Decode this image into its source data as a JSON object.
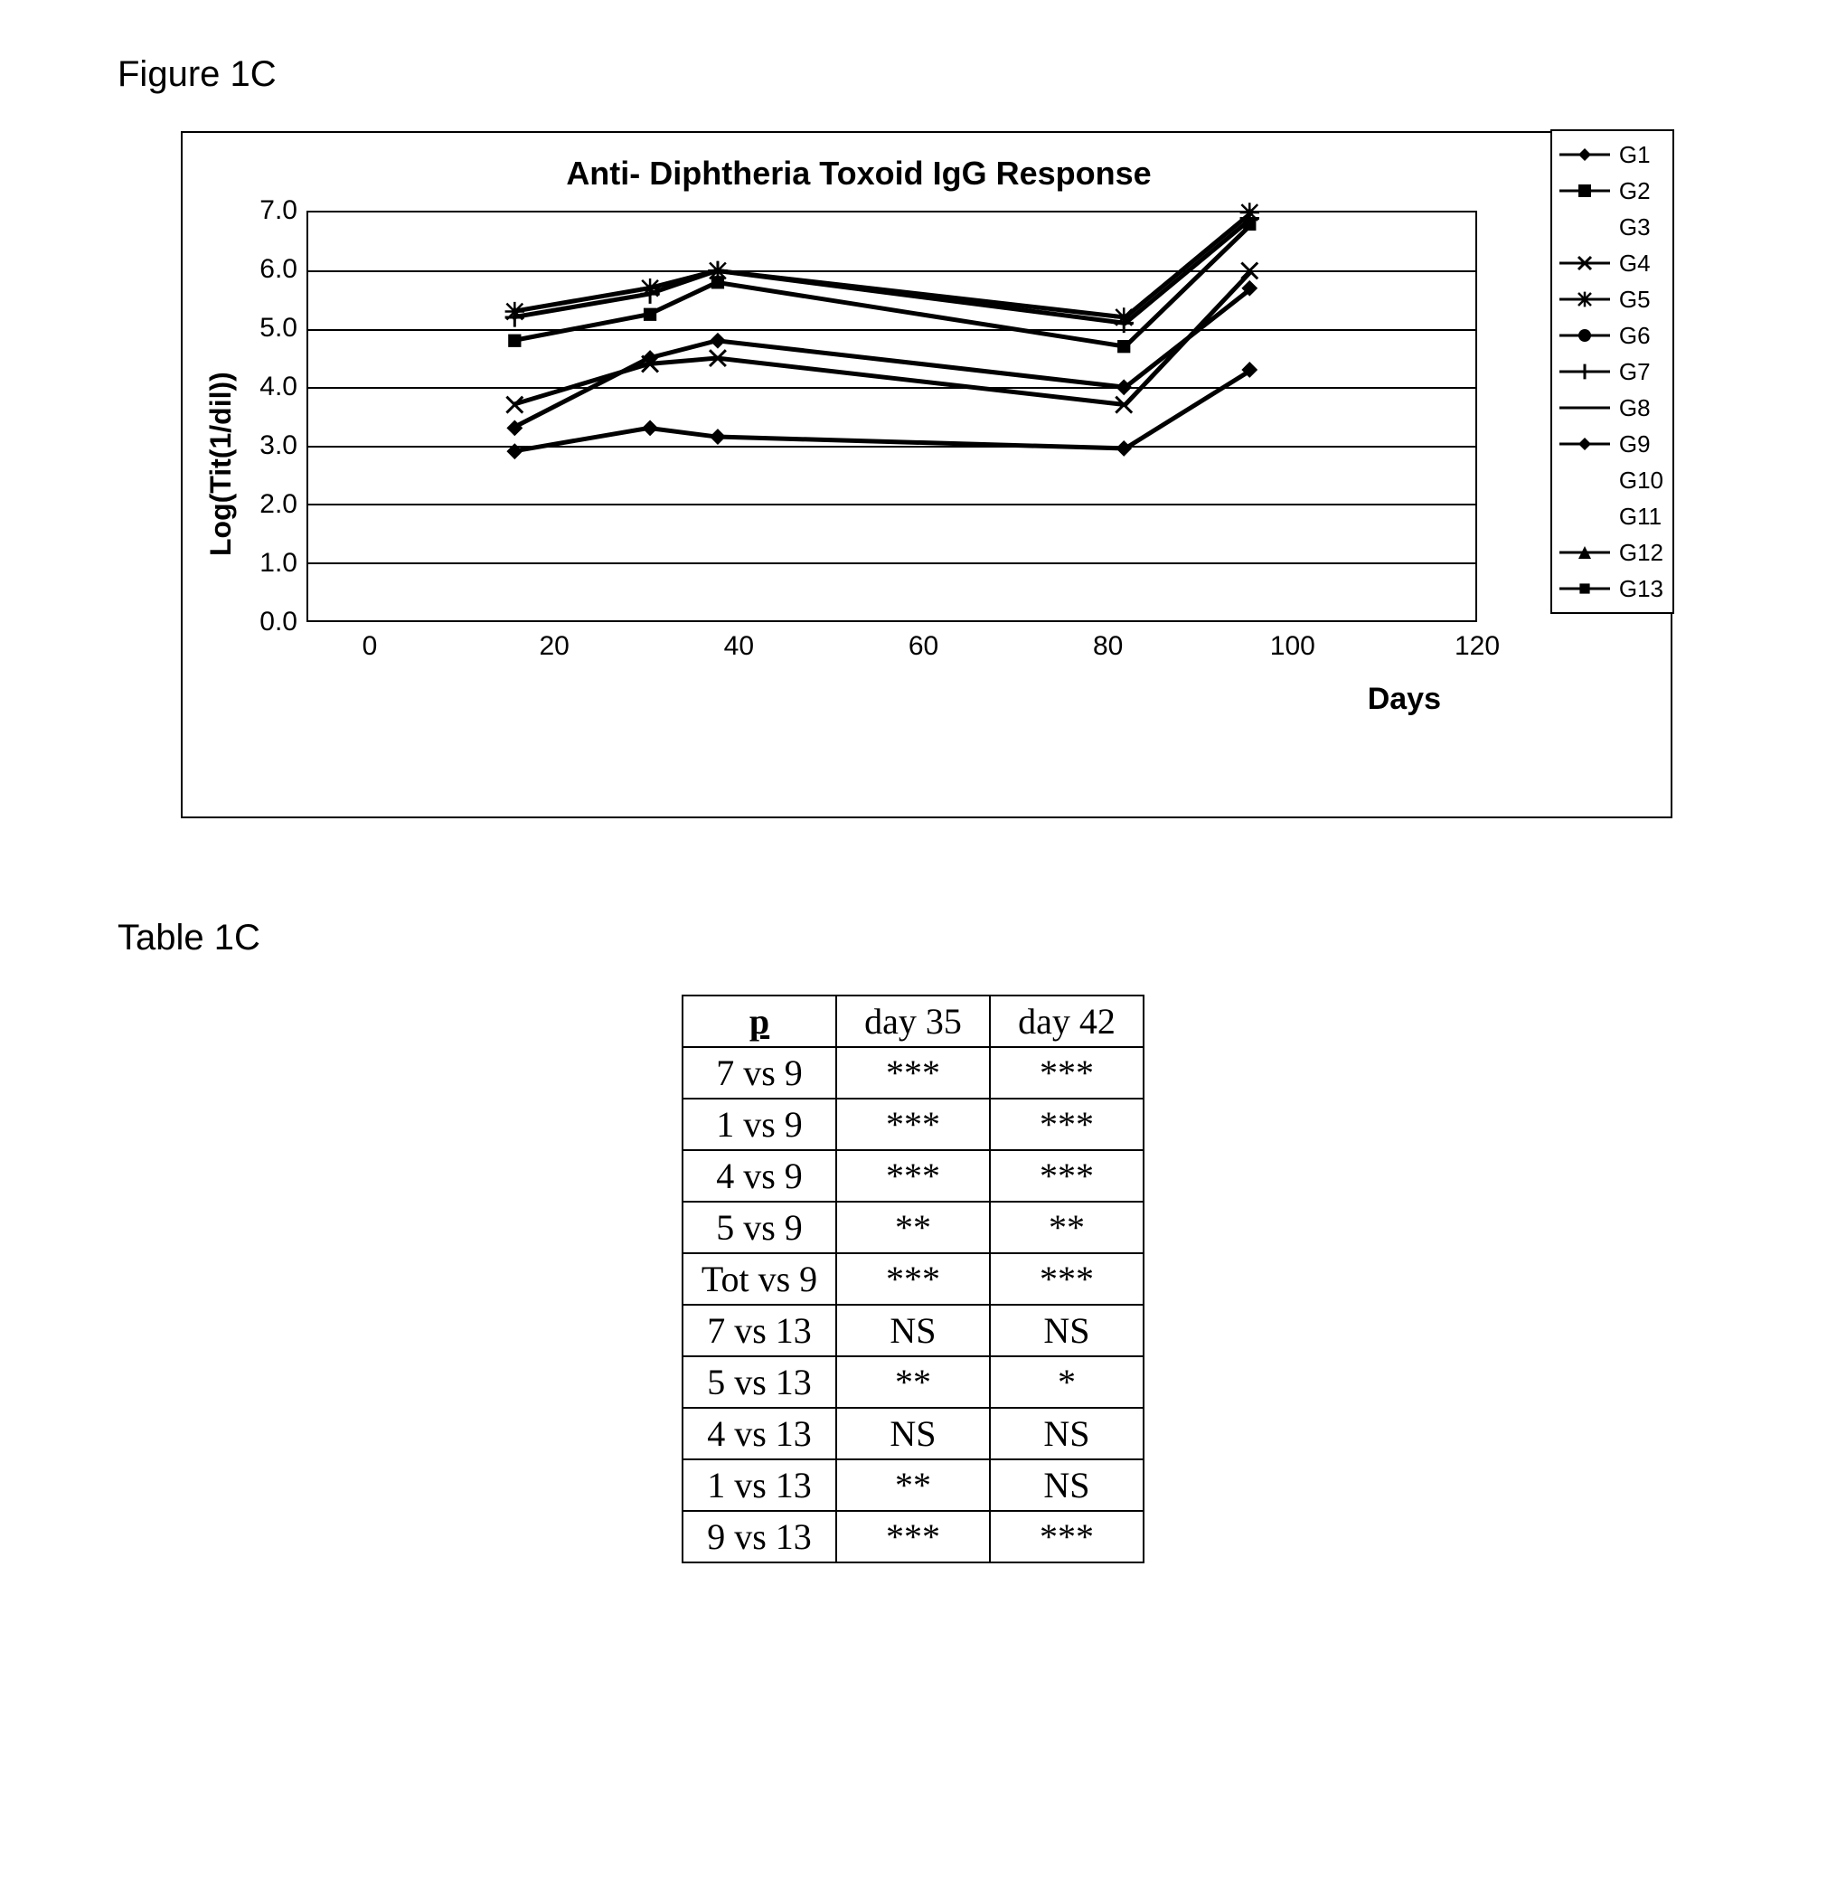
{
  "figure_label": "Figure 1C",
  "table_label": "Table 1C",
  "chart": {
    "type": "line",
    "title": "Anti- Diphtheria Toxoid IgG Response",
    "ylabel": "Log(Tit(1/dil))",
    "xlabel": "Days",
    "xlim": [
      0,
      120
    ],
    "ylim": [
      0.0,
      7.0
    ],
    "xticks": [
      0,
      20,
      40,
      60,
      80,
      100,
      120
    ],
    "yticks": [
      0.0,
      1.0,
      2.0,
      3.0,
      4.0,
      5.0,
      6.0,
      7.0
    ],
    "background_color": "#ffffff",
    "axis_color": "#000000",
    "grid_color": "#000000",
    "title_fontsize": 36,
    "label_fontsize": 32,
    "tick_fontsize": 30,
    "line_width": 3,
    "marker_size": 9,
    "x_values": [
      21,
      35,
      42,
      84,
      97
    ],
    "series": [
      {
        "name": "G1",
        "marker": "diamond",
        "color": "#000000",
        "values": [
          3.3,
          4.5,
          4.8,
          4.0,
          5.7
        ]
      },
      {
        "name": "G2",
        "marker": "square",
        "color": "#000000",
        "values": null
      },
      {
        "name": "G3",
        "marker": "none",
        "color": "#bfbfbf",
        "values": null
      },
      {
        "name": "G4",
        "marker": "x",
        "color": "#000000",
        "values": [
          3.7,
          4.4,
          4.5,
          3.7,
          6.0
        ]
      },
      {
        "name": "G5",
        "marker": "asterisk",
        "color": "#000000",
        "values": [
          5.3,
          5.7,
          6.0,
          5.2,
          7.0
        ]
      },
      {
        "name": "G6",
        "marker": "circle",
        "color": "#000000",
        "values": null
      },
      {
        "name": "G7",
        "marker": "plus",
        "color": "#000000",
        "values": [
          5.2,
          5.6,
          6.0,
          5.1,
          6.9
        ]
      },
      {
        "name": "G8",
        "marker": "dash",
        "color": "#000000",
        "values": null
      },
      {
        "name": "G9",
        "marker": "diamond",
        "color": "#000000",
        "values": [
          2.9,
          3.3,
          3.15,
          2.95,
          4.3
        ]
      },
      {
        "name": "G10",
        "marker": "none",
        "color": "#bfbfbf",
        "values": null
      },
      {
        "name": "G11",
        "marker": "none",
        "color": "#bfbfbf",
        "values": null
      },
      {
        "name": "G12",
        "marker": "triangle",
        "color": "#000000",
        "values": null
      },
      {
        "name": "G13",
        "marker": "squaresm",
        "color": "#000000",
        "values": [
          4.8,
          5.25,
          5.8,
          4.7,
          6.8
        ]
      }
    ]
  },
  "table": {
    "columns": [
      "p",
      "day 35",
      "day 42"
    ],
    "rows": [
      [
        "7 vs 9",
        "***",
        "***"
      ],
      [
        "1 vs 9",
        "***",
        "***"
      ],
      [
        "4 vs 9",
        "***",
        "***"
      ],
      [
        "5 vs 9",
        "**",
        "**"
      ],
      [
        "Tot vs 9",
        "***",
        "***"
      ],
      [
        "7 vs 13",
        "NS",
        "NS"
      ],
      [
        "5 vs 13",
        "**",
        "*"
      ],
      [
        "4 vs 13",
        "NS",
        "NS"
      ],
      [
        "1 vs 13",
        "**",
        "NS"
      ],
      [
        "9 vs 13",
        "***",
        "***"
      ]
    ]
  }
}
